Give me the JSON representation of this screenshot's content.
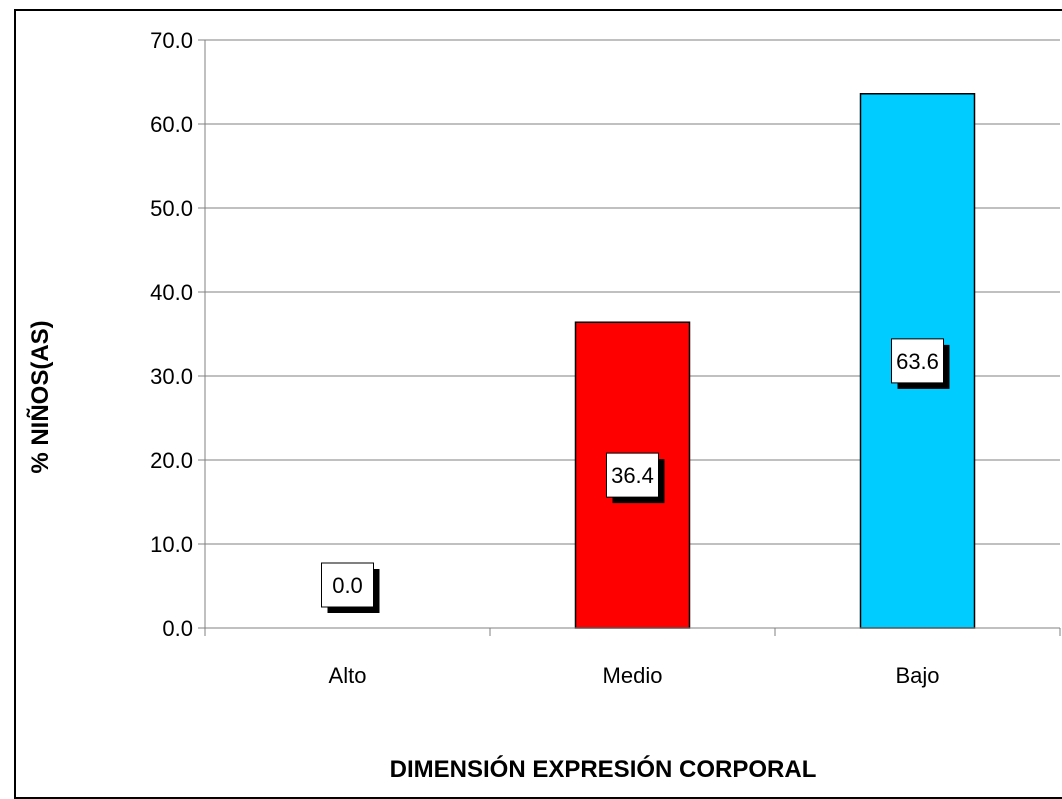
{
  "chart_data": {
    "type": "bar",
    "categories": [
      "Alto",
      "Medio",
      "Bajo"
    ],
    "values": [
      0.0,
      36.4,
      63.6
    ],
    "data_labels": [
      "0.0",
      "36.4",
      "63.6"
    ],
    "colors": [
      "#FF0000",
      "#FF0000",
      "#00CCFF"
    ],
    "xlabel": "DIMENSIÓN EXPRESIÓN CORPORAL",
    "ylabel": "% NIÑOS(AS)",
    "ylim": [
      0,
      70
    ],
    "yticks": [
      "0.0",
      "10.0",
      "20.0",
      "30.0",
      "40.0",
      "50.0",
      "60.0",
      "70.0"
    ],
    "grid": true,
    "legend": "none"
  }
}
